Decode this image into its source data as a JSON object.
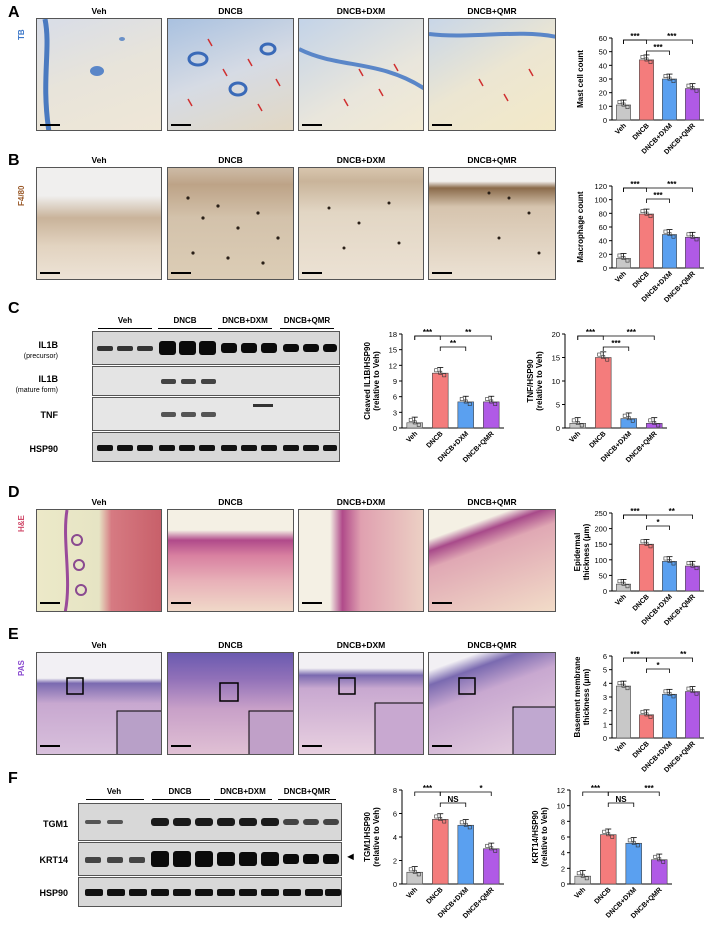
{
  "colors": {
    "veh": "#c8c8c8",
    "dncb": "#f47c7c",
    "dxm": "#5aa0f0",
    "qmr": "#b05ae6"
  },
  "groups": [
    "Veh",
    "DNCB",
    "DNCB+DXM",
    "DNCB+QMR"
  ],
  "sig": {
    "three": "***",
    "two": "**",
    "one": "*",
    "ns": "NS"
  },
  "panels": {
    "A": {
      "label": "A",
      "stain": "TB",
      "stain_color": "#3a76c8",
      "columns": [
        "Veh",
        "DNCB",
        "DNCB+DXM",
        "DNCB+QMR"
      ]
    },
    "B": {
      "label": "B",
      "stain": "F4/80",
      "stain_color": "#9a5a2a",
      "columns": [
        "Veh",
        "DNCB",
        "DNCB+DXM",
        "DNCB+QMR"
      ]
    },
    "C": {
      "label": "C",
      "rows": [
        {
          "name": "IL1B",
          "sub": "(precursor)"
        },
        {
          "name": "IL1B",
          "sub": "(mature form)"
        },
        {
          "name": "TNF",
          "sub": ""
        },
        {
          "name": "HSP90",
          "sub": ""
        }
      ],
      "groups": [
        "Veh",
        "DNCB",
        "DNCB+DXM",
        "DNCB+QMR"
      ]
    },
    "D": {
      "label": "D",
      "stain": "H&E",
      "stain_color": "#d04a6a",
      "columns": [
        "Veh",
        "DNCB",
        "DNCB+DXM",
        "DNCB+QMR"
      ]
    },
    "E": {
      "label": "E",
      "stain": "PAS",
      "stain_color": "#8a4ad0",
      "columns": [
        "Veh",
        "DNCB",
        "DNCB+DXM",
        "DNCB+QMR"
      ]
    },
    "F": {
      "label": "F",
      "rows": [
        {
          "name": "TGM1"
        },
        {
          "name": "KRT14"
        },
        {
          "name": "HSP90"
        }
      ],
      "groups": [
        "Veh",
        "DNCB",
        "DNCB+DXM",
        "DNCB+QMR"
      ],
      "arrow": "◄"
    }
  },
  "chart_data": [
    {
      "id": "A",
      "type": "bar",
      "ylabel": "Mast cell count",
      "ylim": [
        0,
        60
      ],
      "yticks": [
        "0",
        "10",
        "20",
        "30",
        "40",
        "50",
        "60"
      ],
      "tickvals": [
        0,
        10,
        20,
        30,
        40,
        50,
        60
      ],
      "categories": [
        "Veh",
        "DNCB",
        "DNCB+DXM",
        "DNCB+QMR"
      ],
      "values": [
        11,
        44,
        30,
        23
      ],
      "brackets": [
        {
          "a": 0,
          "b": 1,
          "t": "***",
          "lvl": 0
        },
        {
          "a": 0,
          "b": 3,
          "t": "***",
          "lvl": 0,
          "right": true
        },
        {
          "a": 1,
          "b": 2,
          "t": "***",
          "lvl": 1
        }
      ]
    },
    {
      "id": "B",
      "type": "bar",
      "ylabel": "Macrophage count",
      "ylim": [
        0,
        120
      ],
      "yticks": [
        "0",
        "20",
        "40",
        "60",
        "80",
        "100",
        "120"
      ],
      "tickvals": [
        0,
        20,
        40,
        60,
        80,
        100,
        120
      ],
      "categories": [
        "Veh",
        "DNCB",
        "DNCB+DXM",
        "DNCB+QMR"
      ],
      "values": [
        14,
        79,
        49,
        45
      ],
      "brackets": [
        {
          "a": 0,
          "b": 1,
          "t": "***",
          "lvl": 0
        },
        {
          "a": 0,
          "b": 3,
          "t": "***",
          "lvl": 0,
          "right": true
        },
        {
          "a": 1,
          "b": 2,
          "t": "***",
          "lvl": 1
        }
      ]
    },
    {
      "id": "C1",
      "type": "bar",
      "ylabel": "Cleaved IL1B/HSP90",
      "ylabel2": "(relative to Veh)",
      "ylim": [
        0,
        18
      ],
      "yticks": [
        "0",
        "3",
        "6",
        "9",
        "12",
        "15",
        "18"
      ],
      "tickvals": [
        0,
        3,
        6,
        9,
        12,
        15,
        18
      ],
      "categories": [
        "Veh",
        "DNCB",
        "DNCB+DXM",
        "DNCB+QMR"
      ],
      "values": [
        1,
        10.5,
        5,
        5
      ],
      "brackets": [
        {
          "a": 0,
          "b": 1,
          "t": "***",
          "lvl": 0
        },
        {
          "a": 0,
          "b": 3,
          "t": "**",
          "lvl": 0,
          "right": true
        },
        {
          "a": 1,
          "b": 2,
          "t": "**",
          "lvl": 1
        }
      ]
    },
    {
      "id": "C2",
      "type": "bar",
      "ylabel": "TNF/HSP90",
      "ylabel2": "(relative to Veh)",
      "ylim": [
        0,
        20
      ],
      "yticks": [
        "0",
        "5",
        "10",
        "15",
        "20"
      ],
      "tickvals": [
        0,
        5,
        10,
        15,
        20
      ],
      "categories": [
        "Veh",
        "DNCB",
        "DNCB+DXM",
        "DNCB+QMR"
      ],
      "values": [
        1,
        15,
        2,
        1
      ],
      "brackets": [
        {
          "a": 0,
          "b": 1,
          "t": "***",
          "lvl": 0
        },
        {
          "a": 0,
          "b": 3,
          "t": "***",
          "lvl": 0,
          "right": true
        },
        {
          "a": 1,
          "b": 2,
          "t": "***",
          "lvl": 1
        }
      ]
    },
    {
      "id": "D",
      "type": "bar",
      "ylabel": "Epidermal",
      "ylabel2": "thickness (μm)",
      "ylim": [
        0,
        250
      ],
      "yticks": [
        "0",
        "50",
        "100",
        "150",
        "200",
        "250"
      ],
      "tickvals": [
        0,
        50,
        100,
        150,
        200,
        250
      ],
      "categories": [
        "Veh",
        "DNCB",
        "DNCB+DXM",
        "DNCB+QMR"
      ],
      "values": [
        22,
        150,
        95,
        80
      ],
      "brackets": [
        {
          "a": 0,
          "b": 1,
          "t": "***",
          "lvl": 0
        },
        {
          "a": 0,
          "b": 3,
          "t": "**",
          "lvl": 0,
          "right": true
        },
        {
          "a": 1,
          "b": 2,
          "t": "*",
          "lvl": 1
        }
      ]
    },
    {
      "id": "E",
      "type": "bar",
      "ylabel": "Basement membrane",
      "ylabel2": "thickness (μm)",
      "ylim": [
        0,
        6
      ],
      "yticks": [
        "0",
        "1",
        "2",
        "3",
        "4",
        "5",
        "6"
      ],
      "tickvals": [
        0,
        1,
        2,
        3,
        4,
        5,
        6
      ],
      "categories": [
        "Veh",
        "DNCB",
        "DNCB+DXM",
        "DNCB+QMR"
      ],
      "values": [
        3.8,
        1.7,
        3.2,
        3.4
      ],
      "brackets": [
        {
          "a": 0,
          "b": 1,
          "t": "***",
          "lvl": 0
        },
        {
          "a": 1,
          "b": 3,
          "t": "**",
          "lvl": 0,
          "right": true
        },
        {
          "a": 1,
          "b": 2,
          "t": "*",
          "lvl": 1
        }
      ]
    },
    {
      "id": "F1",
      "type": "bar",
      "ylabel": "TGM1/HSP90",
      "ylabel2": "(relative to Veh)",
      "ylim": [
        0,
        8
      ],
      "yticks": [
        "0",
        "2",
        "4",
        "6",
        "8"
      ],
      "tickvals": [
        0,
        2,
        4,
        6,
        8
      ],
      "categories": [
        "Veh",
        "DNCB",
        "DNCB+DXM",
        "DNCB+QMR"
      ],
      "values": [
        1,
        5.5,
        5,
        3
      ],
      "brackets": [
        {
          "a": 0,
          "b": 1,
          "t": "***",
          "lvl": 0
        },
        {
          "a": 1,
          "b": 3,
          "t": "*",
          "lvl": 0,
          "right": true
        },
        {
          "a": 1,
          "b": 2,
          "t": "NS",
          "lvl": 1
        }
      ]
    },
    {
      "id": "F2",
      "type": "bar",
      "ylabel": "KRT14/HSP90",
      "ylabel2": "(relative to Veh)",
      "ylim": [
        0,
        12
      ],
      "yticks": [
        "0",
        "2",
        "4",
        "6",
        "8",
        "10",
        "12"
      ],
      "tickvals": [
        0,
        2,
        4,
        6,
        8,
        10,
        12
      ],
      "categories": [
        "Veh",
        "DNCB",
        "DNCB+DXM",
        "DNCB+QMR"
      ],
      "values": [
        1,
        6.3,
        5.2,
        3.1
      ],
      "brackets": [
        {
          "a": 0,
          "b": 1,
          "t": "***",
          "lvl": 0
        },
        {
          "a": 1,
          "b": 3,
          "t": "***",
          "lvl": 0,
          "right": true
        },
        {
          "a": 1,
          "b": 2,
          "t": "NS",
          "lvl": 1
        }
      ]
    }
  ]
}
